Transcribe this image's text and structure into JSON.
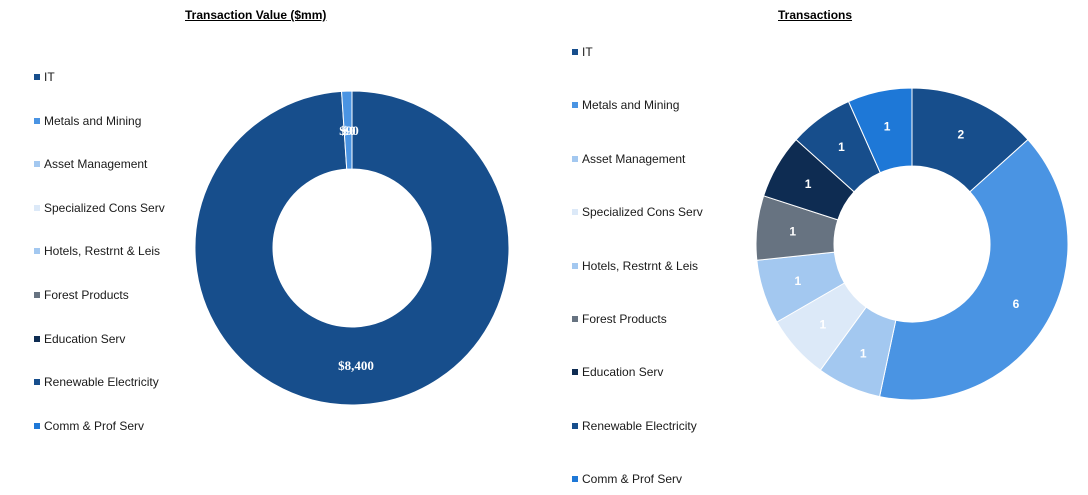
{
  "chart_data": [
    {
      "type": "pie",
      "style": "donut",
      "title": "Transaction Value ($mm)",
      "categories": [
        "IT",
        "Metals and Mining",
        "Asset Management",
        "Specialized Cons Serv",
        "Hotels, Restrnt & Leis",
        "Forest Products",
        "Education Serv",
        "Renewable Electricity",
        "Comm & Prof Serv"
      ],
      "values": [
        8400,
        90,
        0,
        0,
        0,
        0,
        0,
        0,
        0
      ],
      "data_labels": [
        {
          "category": "IT",
          "text": "$8,400"
        },
        {
          "category": "Metals and Mining",
          "text": "$90"
        },
        {
          "category": "Asset Management",
          "text": "$0"
        }
      ],
      "legend_position": "left"
    },
    {
      "type": "pie",
      "style": "donut",
      "title": "Transactions",
      "categories": [
        "IT",
        "Metals and Mining",
        "Asset Management",
        "Specialized Cons Serv",
        "Hotels, Restrnt & Leis",
        "Forest Products",
        "Education Serv",
        "Renewable Electricity",
        "Comm & Prof Serv"
      ],
      "values": [
        2,
        6,
        1,
        1,
        1,
        1,
        1,
        1,
        1
      ],
      "data_labels": [
        "2",
        "6",
        "1",
        "1",
        "1",
        "1",
        "1",
        "1",
        "1"
      ],
      "legend_position": "left"
    }
  ],
  "colors": [
    "#174e8c",
    "#4a94e3",
    "#a3c8f0",
    "#dce9f8",
    "#a3c8f0",
    "#677381",
    "#0e2c52",
    "#174e8c",
    "#1e78d7"
  ],
  "left_label_colors": [
    "#ffffff",
    "#ffffff",
    "#ffffff"
  ]
}
